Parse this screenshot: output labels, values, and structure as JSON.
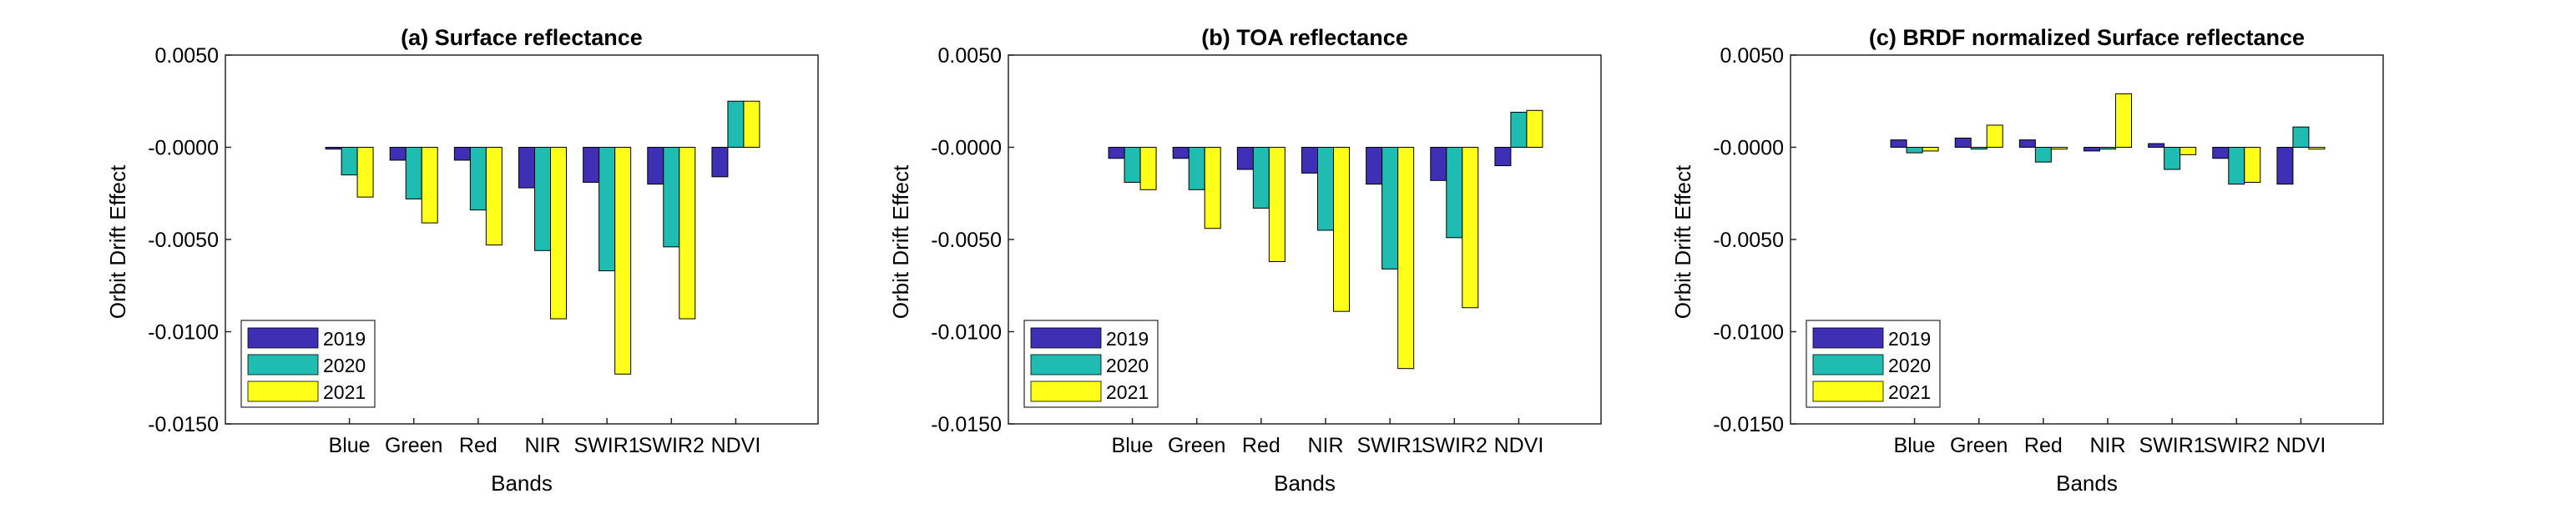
{
  "figure": {
    "background": "#ffffff"
  },
  "chart_data": [
    {
      "type": "bar",
      "title": "(a) Surface reflectance",
      "xlabel": "Bands",
      "ylabel": "Orbit Drift Effect",
      "ylim": [
        -0.015,
        0.005
      ],
      "yticks": [
        0.005,
        0.0,
        -0.005,
        -0.01,
        -0.015
      ],
      "ytick_labels": [
        "0.0050",
        "-0.0000",
        "-0.0050",
        "-0.0100",
        "-0.0150"
      ],
      "categories": [
        "Blue",
        "Green",
        "Red",
        "NIR",
        "SWIR1",
        "SWIR2",
        "NDVI"
      ],
      "series": [
        {
          "name": "2019",
          "color": "#3f2fb5",
          "values": [
            -0.0001,
            -0.0007,
            -0.0007,
            -0.0022,
            -0.0019,
            -0.002,
            -0.0016
          ]
        },
        {
          "name": "2020",
          "color": "#1fbcb1",
          "values": [
            -0.0015,
            -0.0028,
            -0.0034,
            -0.0056,
            -0.0067,
            -0.0054,
            0.0025
          ]
        },
        {
          "name": "2021",
          "color": "#ffff1a",
          "values": [
            -0.0027,
            -0.0041,
            -0.0053,
            -0.0093,
            -0.0123,
            -0.0093,
            0.0025
          ]
        }
      ],
      "grid": false,
      "legend": "bottom-left"
    },
    {
      "type": "bar",
      "title": "(b) TOA reflectance",
      "xlabel": "Bands",
      "ylabel": "Orbit Drift Effect",
      "ylim": [
        -0.015,
        0.005
      ],
      "yticks": [
        0.005,
        0.0,
        -0.005,
        -0.01,
        -0.015
      ],
      "ytick_labels": [
        "0.0050",
        "-0.0000",
        "-0.0050",
        "-0.0100",
        "-0.0150"
      ],
      "categories": [
        "Blue",
        "Green",
        "Red",
        "NIR",
        "SWIR1",
        "SWIR2",
        "NDVI"
      ],
      "series": [
        {
          "name": "2019",
          "color": "#3f2fb5",
          "values": [
            -0.0006,
            -0.0006,
            -0.0012,
            -0.0014,
            -0.002,
            -0.0018,
            -0.001
          ]
        },
        {
          "name": "2020",
          "color": "#1fbcb1",
          "values": [
            -0.0019,
            -0.0023,
            -0.0033,
            -0.0045,
            -0.0066,
            -0.0049,
            0.0019
          ]
        },
        {
          "name": "2021",
          "color": "#ffff1a",
          "values": [
            -0.0023,
            -0.0044,
            -0.0062,
            -0.0089,
            -0.012,
            -0.0087,
            0.002
          ]
        }
      ],
      "grid": false,
      "legend": "bottom-left"
    },
    {
      "type": "bar",
      "title": "(c) BRDF normalized Surface reflectance",
      "xlabel": "Bands",
      "ylabel": "Orbit Drift Effect",
      "ylim": [
        -0.015,
        0.005
      ],
      "yticks": [
        0.005,
        0.0,
        -0.005,
        -0.01,
        -0.015
      ],
      "ytick_labels": [
        "0.0050",
        "-0.0000",
        "-0.0050",
        "-0.0100",
        "-0.0150"
      ],
      "categories": [
        "Blue",
        "Green",
        "Red",
        "NIR",
        "SWIR1",
        "SWIR2",
        "NDVI"
      ],
      "series": [
        {
          "name": "2019",
          "color": "#3f2fb5",
          "values": [
            0.0004,
            0.0005,
            0.0004,
            -0.0002,
            0.0002,
            -0.0006,
            -0.002
          ]
        },
        {
          "name": "2020",
          "color": "#1fbcb1",
          "values": [
            -0.0003,
            -0.0001,
            -0.0008,
            -0.0001,
            -0.0012,
            -0.002,
            0.0011
          ]
        },
        {
          "name": "2021",
          "color": "#ffff1a",
          "values": [
            -0.0002,
            0.0012,
            -0.0001,
            0.0029,
            -0.0004,
            -0.0019,
            -0.0001
          ]
        }
      ],
      "grid": false,
      "legend": "bottom-left"
    }
  ]
}
